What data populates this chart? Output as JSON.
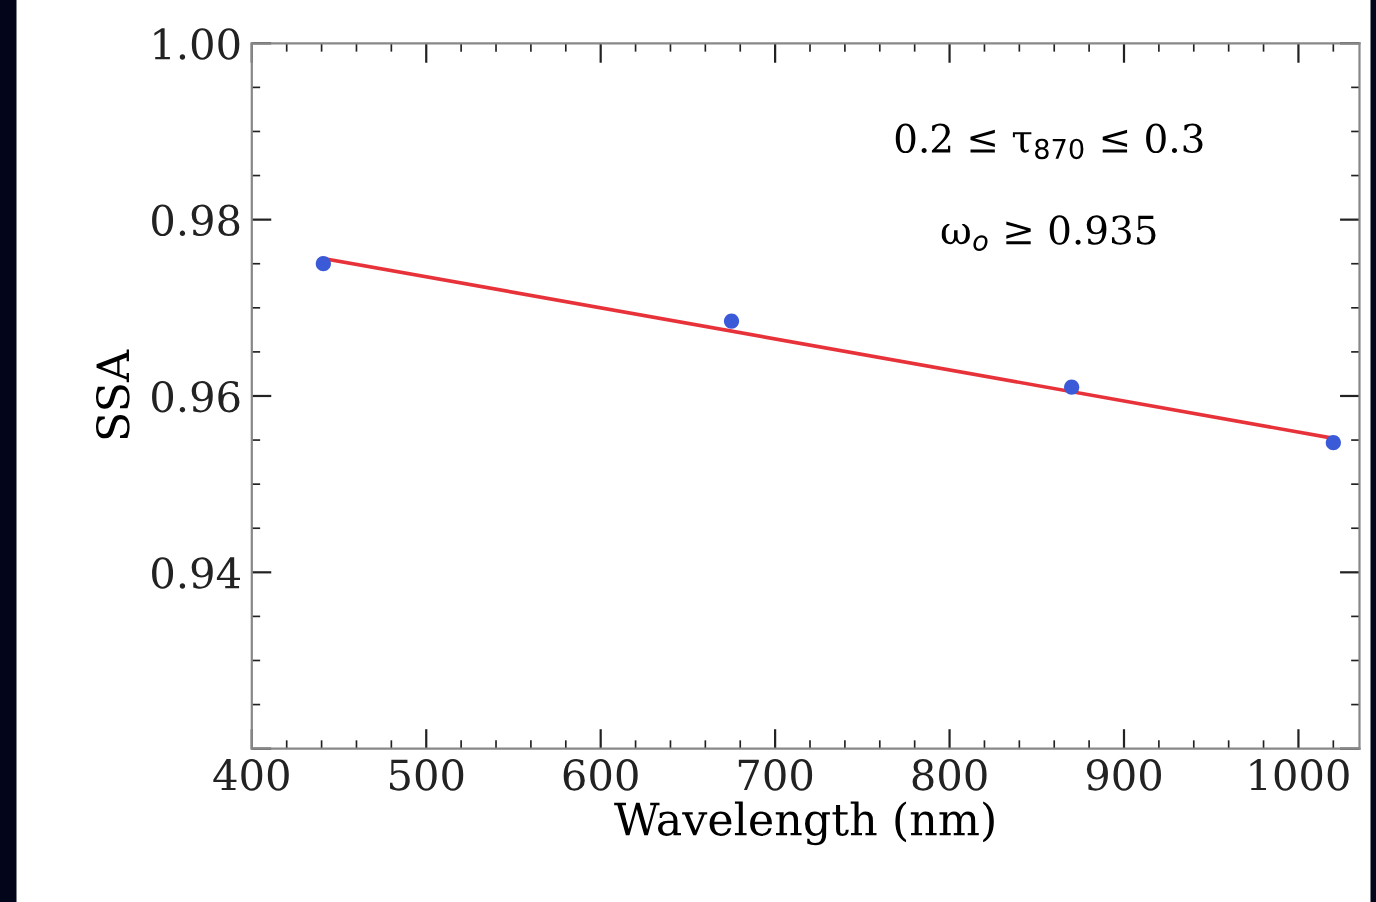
{
  "chart_data": {
    "type": "scatter",
    "xlabel": "Wavelength (nm)",
    "ylabel": "SSA",
    "x": [
      441,
      675,
      870,
      1020
    ],
    "series": [
      {
        "color": "#3a5ad8",
        "values": [
          0.975,
          0.9685,
          0.961,
          0.9547
        ],
        "marker": "circle"
      },
      {
        "type": "line",
        "color": "#e8323a",
        "x": [
          441,
          1020
        ],
        "values": [
          0.9756,
          0.9552
        ],
        "marker": "none"
      }
    ],
    "xlim": [
      400,
      1035
    ],
    "xticks": [
      400,
      500,
      600,
      700,
      800,
      900,
      1000
    ],
    "ylim": [
      0.92,
      1.0
    ],
    "yticks": [
      {
        "value": 0.92,
        "label": null
      },
      0.94,
      0.96,
      0.98,
      {
        "value": 1.0,
        "label": "1.00"
      }
    ],
    "grid": false,
    "legend": false,
    "annotations": [
      {
        "text": "0.2 ≤ τ$_{870}$ ≤ 0.3"
      },
      {
        "text": "ω$_{o}$ ≥ 0.935"
      }
    ]
  }
}
